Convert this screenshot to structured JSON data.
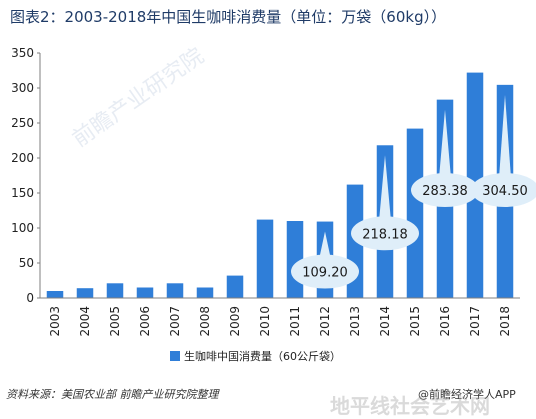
{
  "title": "图表2：2003-2018年中国生咖啡消费量（单位：万袋（60kg））",
  "source": "资料来源：美国农业部 前瞻产业研究院整理",
  "brand": "@前瞻经济学人APP",
  "watermark": "前瞻产业研究院",
  "overlay_watermark": "地平线社会艺术网",
  "colors": {
    "bar": "#2f7ed8",
    "axis": "#7f7f7f",
    "callout": "#dfeef9",
    "text": "#222222"
  },
  "chart_data": {
    "type": "bar",
    "categories": [
      "2003",
      "2004",
      "2005",
      "2006",
      "2007",
      "2008",
      "2009",
      "2010",
      "2011",
      "2012",
      "2013",
      "2014",
      "2015",
      "2016",
      "2017",
      "2018"
    ],
    "series": [
      {
        "name": "生咖啡中国消费量（60公斤袋）",
        "values": [
          10,
          14,
          21,
          15,
          21,
          15,
          32,
          112,
          110,
          109.2,
          162,
          218.18,
          242,
          283.38,
          322,
          304.5
        ]
      }
    ],
    "ylim": [
      0,
      350
    ],
    "yticks": [
      0,
      50,
      100,
      150,
      200,
      250,
      300,
      350
    ],
    "grid": false,
    "legend_position": "bottom",
    "annotations": [
      {
        "category": "2012",
        "text": "109.20"
      },
      {
        "category": "2014",
        "text": "218.18"
      },
      {
        "category": "2016",
        "text": "283.38"
      },
      {
        "category": "2018",
        "text": "304.50"
      }
    ]
  }
}
